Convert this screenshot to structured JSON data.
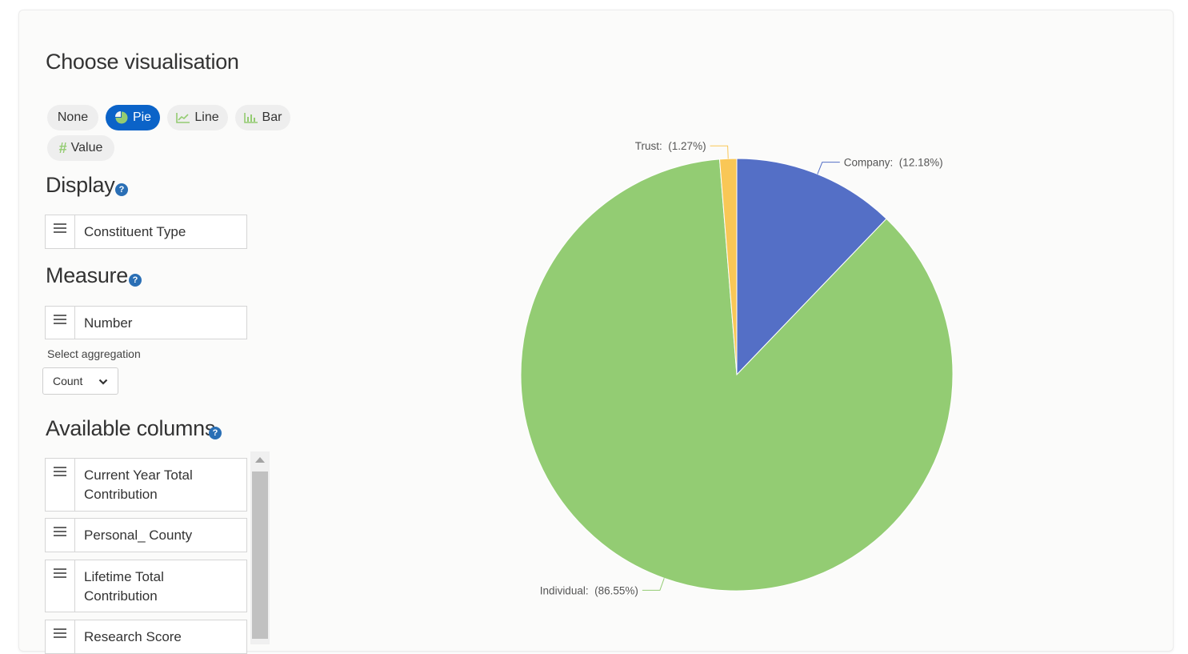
{
  "section_titles": {
    "choose_visualisation": "Choose visualisation",
    "display": "Display",
    "measure": "Measure",
    "available_columns": "Available columns"
  },
  "chips": [
    {
      "label": "None",
      "icon": "",
      "active": false
    },
    {
      "label": "Pie",
      "icon": "pie-chart-icon",
      "active": true
    },
    {
      "label": "Line",
      "icon": "line-chart-icon",
      "active": false
    },
    {
      "label": "Bar",
      "icon": "bar-chart-icon",
      "active": false
    },
    {
      "label": "Value",
      "icon": "hash-icon",
      "active": false
    }
  ],
  "display_field": "Constituent Type",
  "measure_field": "Number",
  "aggregation": {
    "label": "Select aggregation",
    "value": "Count"
  },
  "available_columns": [
    "Current Year Total Contribution",
    "Personal_ County",
    "Lifetime Total Contribution",
    "Research Score"
  ],
  "colors": {
    "accent": "#0b63c8",
    "icon_green": "#94cc72"
  },
  "chart_data": {
    "type": "pie",
    "series": [
      {
        "name": "Company",
        "value": 12.18,
        "label": "Company:  (12.18%)",
        "color": "#546fc6"
      },
      {
        "name": "Individual",
        "value": 86.55,
        "label": "Individual:  (86.55%)",
        "color": "#93cc73"
      },
      {
        "name": "Trust",
        "value": 1.27,
        "label": "Trust:  (1.27%)",
        "color": "#f9c756"
      }
    ]
  }
}
